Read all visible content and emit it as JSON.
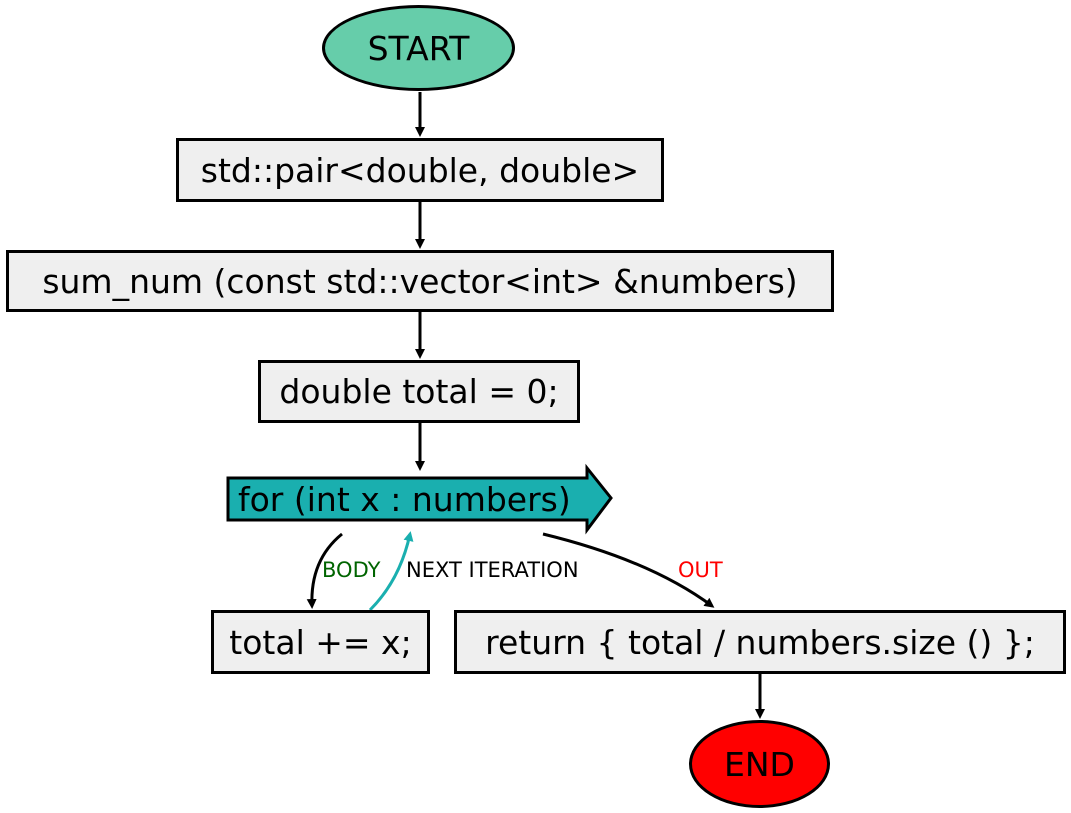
{
  "nodes": {
    "start": {
      "label": "START",
      "color": "#66cdaa"
    },
    "signature_type": {
      "label": "std::pair<double, double>"
    },
    "signature_name": {
      "label": "sum_num (const std::vector<int> &numbers)"
    },
    "init": {
      "label": "double total = 0;"
    },
    "loop": {
      "label": "for (int x : numbers)",
      "color": "#1aafaf"
    },
    "body": {
      "label": "total += x;"
    },
    "ret": {
      "label": "return { total / numbers.size () };"
    },
    "end": {
      "label": "END",
      "color": "#ff0000"
    }
  },
  "edges": {
    "body_label": {
      "text": "BODY",
      "color": "#006400"
    },
    "next_label": {
      "text": "NEXT ITERATION",
      "color": "#000000"
    },
    "out_label": {
      "text": "OUT",
      "color": "#ff0000"
    },
    "next_arrow_color": "#1aafaf"
  }
}
